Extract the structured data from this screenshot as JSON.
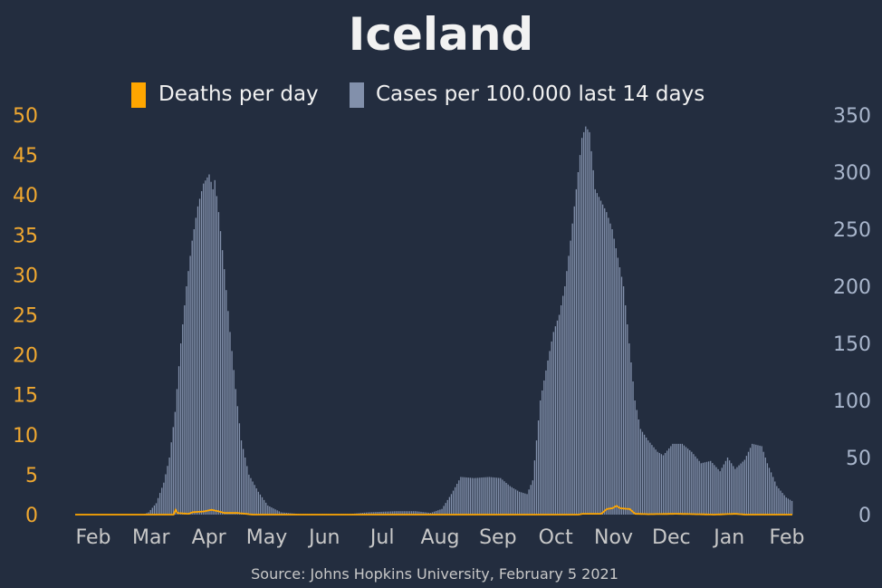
{
  "chart_data": {
    "type": "bar",
    "title": "Iceland",
    "source": "Source: Johns Hopkins University, February 5 2021",
    "legend": {
      "position": "top-center",
      "deaths_label": "Deaths per day",
      "cases_label": "Cases per 100.000 last 14 days"
    },
    "x_ticks": [
      "Feb",
      "Mar",
      "Apr",
      "May",
      "Jun",
      "Jul",
      "Aug",
      "Sep",
      "Oct",
      "Nov",
      "Dec",
      "Jan",
      "Feb"
    ],
    "y_left": {
      "min": 0,
      "max": 50,
      "ticks": [
        "0",
        "5",
        "10",
        "15",
        "20",
        "25",
        "30",
        "35",
        "40",
        "45",
        "50"
      ]
    },
    "y_right": {
      "min": 0,
      "max": 350,
      "ticks": [
        "0",
        "50",
        "100",
        "150",
        "200",
        "250",
        "300",
        "350"
      ]
    },
    "grid": false,
    "colors": {
      "background": "#232d3f",
      "deaths": "#ffa600",
      "cases": "#8290ab",
      "left_axis_text": "#f0a830",
      "right_axis_text": "#a9b6cc",
      "month_text": "#c8c8c8",
      "title_text": "#f2f2f2",
      "source_text": "#c8c8c8"
    },
    "series": [
      {
        "name": "Cases per 100.000 last 14 days",
        "axis": "right",
        "start_date": "2020-01-22",
        "end_date": "2021-02-04",
        "keypoints": [
          [
            "2020-01-22",
            0
          ],
          [
            "2020-02-27",
            0
          ],
          [
            "2020-03-01",
            2
          ],
          [
            "2020-03-05",
            10
          ],
          [
            "2020-03-09",
            28
          ],
          [
            "2020-03-12",
            50
          ],
          [
            "2020-03-15",
            90
          ],
          [
            "2020-03-18",
            150
          ],
          [
            "2020-03-21",
            200
          ],
          [
            "2020-03-24",
            240
          ],
          [
            "2020-03-27",
            270
          ],
          [
            "2020-03-30",
            290
          ],
          [
            "2020-04-02",
            298
          ],
          [
            "2020-04-04",
            285
          ],
          [
            "2020-04-05",
            293
          ],
          [
            "2020-04-07",
            265
          ],
          [
            "2020-04-10",
            215
          ],
          [
            "2020-04-13",
            160
          ],
          [
            "2020-04-16",
            110
          ],
          [
            "2020-04-19",
            65
          ],
          [
            "2020-04-23",
            35
          ],
          [
            "2020-04-28",
            20
          ],
          [
            "2020-05-03",
            8
          ],
          [
            "2020-05-10",
            2
          ],
          [
            "2020-05-20",
            0.5
          ],
          [
            "2020-06-15",
            0.5
          ],
          [
            "2020-06-25",
            2
          ],
          [
            "2020-07-10",
            3
          ],
          [
            "2020-07-20",
            3
          ],
          [
            "2020-07-28",
            1.5
          ],
          [
            "2020-08-03",
            5
          ],
          [
            "2020-08-08",
            18
          ],
          [
            "2020-08-13",
            33
          ],
          [
            "2020-08-20",
            32
          ],
          [
            "2020-08-28",
            33
          ],
          [
            "2020-09-03",
            32
          ],
          [
            "2020-09-08",
            25
          ],
          [
            "2020-09-13",
            20
          ],
          [
            "2020-09-17",
            18
          ],
          [
            "2020-09-20",
            30
          ],
          [
            "2020-09-24",
            100
          ],
          [
            "2020-09-28",
            135
          ],
          [
            "2020-10-01",
            160
          ],
          [
            "2020-10-04",
            175
          ],
          [
            "2020-10-07",
            200
          ],
          [
            "2020-10-10",
            240
          ],
          [
            "2020-10-13",
            285
          ],
          [
            "2020-10-16",
            330
          ],
          [
            "2020-10-18",
            340
          ],
          [
            "2020-10-20",
            335
          ],
          [
            "2020-10-23",
            285
          ],
          [
            "2020-10-26",
            275
          ],
          [
            "2020-10-29",
            265
          ],
          [
            "2020-11-01",
            250
          ],
          [
            "2020-11-04",
            225
          ],
          [
            "2020-11-07",
            200
          ],
          [
            "2020-11-10",
            150
          ],
          [
            "2020-11-13",
            100
          ],
          [
            "2020-11-16",
            75
          ],
          [
            "2020-11-20",
            65
          ],
          [
            "2020-11-25",
            55
          ],
          [
            "2020-11-28",
            52
          ],
          [
            "2020-12-03",
            62
          ],
          [
            "2020-12-08",
            62
          ],
          [
            "2020-12-13",
            55
          ],
          [
            "2020-12-18",
            45
          ],
          [
            "2020-12-23",
            47
          ],
          [
            "2020-12-28",
            38
          ],
          [
            "2021-01-01",
            50
          ],
          [
            "2021-01-05",
            40
          ],
          [
            "2021-01-10",
            48
          ],
          [
            "2021-01-14",
            62
          ],
          [
            "2021-01-19",
            60
          ],
          [
            "2021-01-22",
            45
          ],
          [
            "2021-01-27",
            25
          ],
          [
            "2021-02-01",
            15
          ],
          [
            "2021-02-04",
            12
          ]
        ]
      },
      {
        "name": "Deaths per day",
        "axis": "left",
        "start_date": "2020-01-22",
        "end_date": "2021-02-04",
        "keypoints": [
          [
            "2020-01-22",
            0
          ],
          [
            "2020-03-14",
            0
          ],
          [
            "2020-03-15",
            0.6
          ],
          [
            "2020-03-16",
            0.2
          ],
          [
            "2020-03-22",
            0.1
          ],
          [
            "2020-03-24",
            0.3
          ],
          [
            "2020-03-30",
            0.4
          ],
          [
            "2020-04-03",
            0.6
          ],
          [
            "2020-04-07",
            0.4
          ],
          [
            "2020-04-10",
            0.2
          ],
          [
            "2020-04-17",
            0.2
          ],
          [
            "2020-04-25",
            0
          ],
          [
            "2020-10-14",
            0
          ],
          [
            "2020-10-16",
            0.1
          ],
          [
            "2020-10-26",
            0.1
          ],
          [
            "2020-10-29",
            0.7
          ],
          [
            "2020-11-01",
            0.8
          ],
          [
            "2020-11-03",
            1.1
          ],
          [
            "2020-11-05",
            0.8
          ],
          [
            "2020-11-10",
            0.7
          ],
          [
            "2020-11-13",
            0.1
          ],
          [
            "2020-11-20",
            0.05
          ],
          [
            "2020-12-05",
            0.1
          ],
          [
            "2020-12-25",
            0
          ],
          [
            "2021-01-05",
            0.1
          ],
          [
            "2021-01-10",
            0
          ],
          [
            "2021-02-04",
            0
          ]
        ]
      }
    ]
  }
}
